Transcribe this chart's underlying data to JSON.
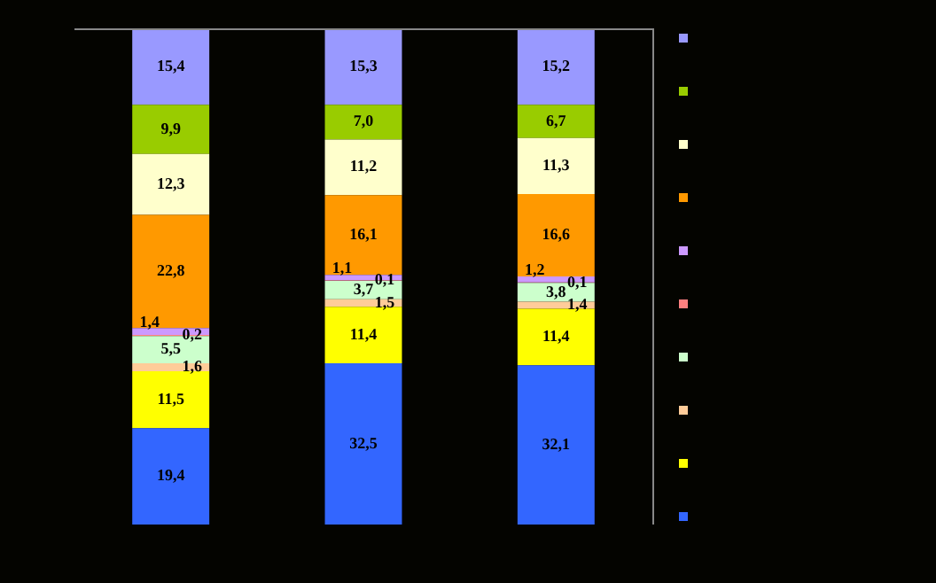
{
  "chart_data": {
    "type": "bar",
    "stacked": true,
    "categories": [
      null,
      null,
      null
    ],
    "ylim": [
      0,
      100
    ],
    "tick_labels": false,
    "grid": false,
    "series": [
      {
        "color": "#3366ff",
        "values": [
          19.4,
          32.5,
          32.1
        ],
        "value_labels": [
          "19,4",
          "32,5",
          "32,1"
        ]
      },
      {
        "color": "#ffff00",
        "values": [
          11.5,
          11.4,
          11.4
        ],
        "value_labels": [
          "11,5",
          "11,4",
          "11,4"
        ]
      },
      {
        "color": "#ffcc99",
        "values": [
          1.6,
          1.5,
          1.4
        ],
        "value_labels": [
          "1,6",
          "1,5",
          "1,4"
        ]
      },
      {
        "color": "#ccffcc",
        "values": [
          5.5,
          3.7,
          3.8
        ],
        "value_labels": [
          "5,5",
          "3,7",
          "3,8"
        ]
      },
      {
        "color": "#ff8080",
        "values": [
          0.2,
          0.1,
          0.1
        ],
        "value_labels": [
          "0,2",
          "0,1",
          "0,1"
        ]
      },
      {
        "color": "#cc99ff",
        "values": [
          1.4,
          1.1,
          1.2
        ],
        "value_labels": [
          "1,4",
          "1,1",
          "1,2"
        ]
      },
      {
        "color": "#ff9900",
        "values": [
          22.8,
          16.1,
          16.6
        ],
        "value_labels": [
          "22,8",
          "16,1",
          "16,6"
        ]
      },
      {
        "color": "#ffffcc",
        "values": [
          12.3,
          11.2,
          11.3
        ],
        "value_labels": [
          "12,3",
          "11,2",
          "11,3"
        ]
      },
      {
        "color": "#99cc00",
        "values": [
          9.9,
          7.0,
          6.7
        ],
        "value_labels": [
          "9,9",
          "7,0",
          "6,7"
        ]
      },
      {
        "color": "#9999ff",
        "values": [
          15.4,
          15.3,
          15.2
        ],
        "value_labels": [
          "15,4",
          "15,3",
          "15,2"
        ]
      }
    ]
  }
}
